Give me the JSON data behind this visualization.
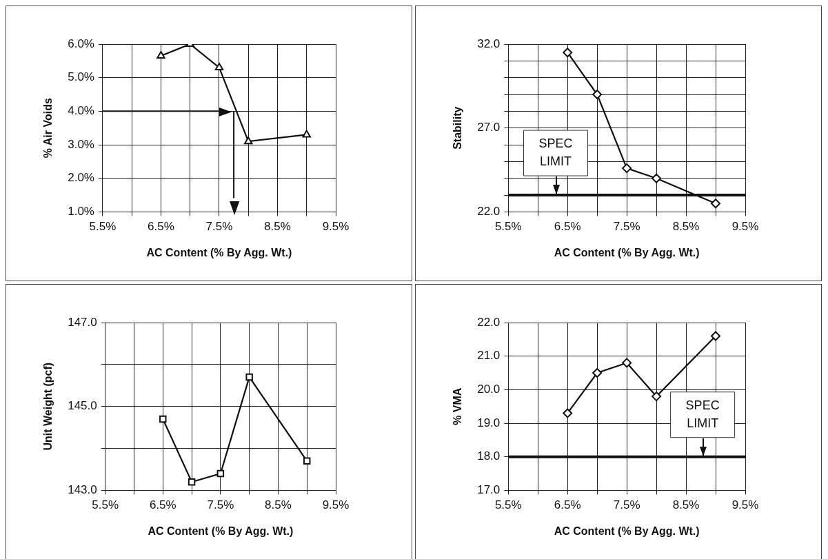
{
  "chart_data": [
    {
      "type": "line",
      "xlabel": "AC Content (% By Agg. Wt.)",
      "ylabel": "% Air Voids",
      "marker": "triangle",
      "grid": true,
      "xlim": [
        5.5,
        9.5
      ],
      "xticks": [
        {
          "value": 5.5,
          "label": "5.5%"
        },
        {
          "value": 6,
          "label": null
        },
        {
          "value": 6.5,
          "label": "6.5%"
        },
        {
          "value": 7,
          "label": null
        },
        {
          "value": 7.5,
          "label": "7.5%"
        },
        {
          "value": 8,
          "label": null
        },
        {
          "value": 8.5,
          "label": "8.5%"
        },
        {
          "value": 9,
          "label": null
        },
        {
          "value": 9.5,
          "label": "9.5%"
        }
      ],
      "ylim": [
        1,
        6
      ],
      "yticks": [
        {
          "value": 1,
          "label": "1.0%"
        },
        {
          "value": 2,
          "label": "2.0%"
        },
        {
          "value": 3,
          "label": "3.0%"
        },
        {
          "value": 4,
          "label": "4.0%"
        },
        {
          "value": 5,
          "label": "5.0%"
        },
        {
          "value": 6,
          "label": "6.0%"
        }
      ],
      "series": [
        {
          "color": "#111111",
          "x": [
            6.5,
            7,
            7.5,
            8,
            9
          ],
          "values": [
            5.65,
            6.0,
            5.3,
            3.1,
            3.3
          ]
        }
      ],
      "ref_lines": [
        {
          "axis": "y",
          "value": 4
        },
        {
          "axis": "x",
          "value": 7.75
        }
      ]
    },
    {
      "type": "line",
      "xlabel": "AC Content (% By Agg. Wt.)",
      "ylabel": "Stability",
      "marker": "diamond",
      "grid": true,
      "xlim": [
        5.5,
        9.5
      ],
      "xticks": [
        {
          "value": 5.5,
          "label": "5.5%"
        },
        {
          "value": 6,
          "label": null
        },
        {
          "value": 6.5,
          "label": "6.5%"
        },
        {
          "value": 7,
          "label": null
        },
        {
          "value": 7.5,
          "label": "7.5%"
        },
        {
          "value": 8,
          "label": null
        },
        {
          "value": 8.5,
          "label": "8.5%"
        },
        {
          "value": 9,
          "label": null
        },
        {
          "value": 9.5,
          "label": "9.5%"
        }
      ],
      "ylim": [
        22,
        32
      ],
      "yticks": [
        {
          "value": 22,
          "label": "22.0"
        },
        {
          "value": 23,
          "label": null
        },
        {
          "value": 24,
          "label": null
        },
        {
          "value": 25,
          "label": null
        },
        {
          "value": 26,
          "label": null
        },
        {
          "value": 27,
          "label": "27.0"
        },
        {
          "value": 28,
          "label": null
        },
        {
          "value": 29,
          "label": null
        },
        {
          "value": 30,
          "label": null
        },
        {
          "value": 31,
          "label": null
        },
        {
          "value": 32,
          "label": "32.0"
        }
      ],
      "series": [
        {
          "color": "#111111",
          "x": [
            6.5,
            7,
            7.5,
            8,
            9
          ],
          "values": [
            31.5,
            29.0,
            24.6,
            24.0,
            22.5
          ]
        }
      ],
      "ref_lines": [
        {
          "axis": "y",
          "value": 23,
          "label": "SPEC LIMIT",
          "line_style": "solid"
        }
      ]
    },
    {
      "type": "line",
      "xlabel": "AC Content (% By Agg. Wt.)",
      "ylabel": "Unit Weight (pcf)",
      "marker": "square",
      "grid": true,
      "xlim": [
        5.5,
        9.5
      ],
      "xticks": [
        {
          "value": 5.5,
          "label": "5.5%"
        },
        {
          "value": 6,
          "label": null
        },
        {
          "value": 6.5,
          "label": "6.5%"
        },
        {
          "value": 7,
          "label": null
        },
        {
          "value": 7.5,
          "label": "7.5%"
        },
        {
          "value": 8,
          "label": null
        },
        {
          "value": 8.5,
          "label": "8.5%"
        },
        {
          "value": 9,
          "label": null
        },
        {
          "value": 9.5,
          "label": "9.5%"
        }
      ],
      "ylim": [
        143,
        147
      ],
      "yticks": [
        {
          "value": 143,
          "label": "143.0"
        },
        {
          "value": 144,
          "label": null
        },
        {
          "value": 145,
          "label": "145.0"
        },
        {
          "value": 146,
          "label": null
        },
        {
          "value": 147,
          "label": "147.0"
        }
      ],
      "series": [
        {
          "color": "#111111",
          "x": [
            6.5,
            7,
            7.5,
            8,
            9
          ],
          "values": [
            144.7,
            143.2,
            143.4,
            145.7,
            143.7
          ]
        }
      ]
    },
    {
      "type": "line",
      "xlabel": "AC Content (% By Agg. Wt.)",
      "ylabel": "% VMA",
      "marker": "diamond",
      "grid": true,
      "xlim": [
        5.5,
        9.5
      ],
      "xticks": [
        {
          "value": 5.5,
          "label": "5.5%"
        },
        {
          "value": 6,
          "label": null
        },
        {
          "value": 6.5,
          "label": "6.5%"
        },
        {
          "value": 7,
          "label": null
        },
        {
          "value": 7.5,
          "label": "7.5%"
        },
        {
          "value": 8,
          "label": null
        },
        {
          "value": 8.5,
          "label": "8.5%"
        },
        {
          "value": 9,
          "label": null
        },
        {
          "value": 9.5,
          "label": "9.5%"
        }
      ],
      "ylim": [
        17,
        22
      ],
      "yticks": [
        {
          "value": 17,
          "label": "17.0"
        },
        {
          "value": 18,
          "label": "18.0"
        },
        {
          "value": 19,
          "label": "19.0"
        },
        {
          "value": 20,
          "label": "20.0"
        },
        {
          "value": 21,
          "label": "21.0"
        },
        {
          "value": 22,
          "label": "22.0"
        }
      ],
      "series": [
        {
          "color": "#111111",
          "x": [
            6.5,
            7,
            7.5,
            8,
            9
          ],
          "values": [
            19.3,
            20.5,
            20.8,
            19.8,
            21.6
          ]
        }
      ],
      "ref_lines": [
        {
          "axis": "y",
          "value": 18,
          "label": "SPEC LIMIT",
          "line_style": "solid"
        }
      ]
    }
  ]
}
